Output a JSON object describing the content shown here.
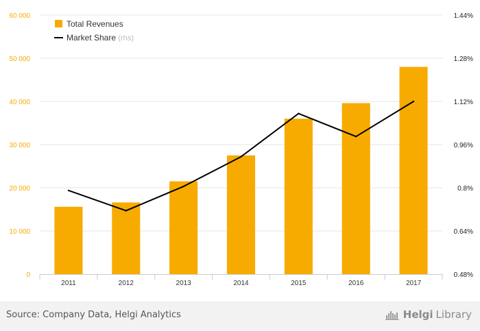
{
  "chart_data": {
    "type": "bar+line",
    "categories": [
      "2011",
      "2012",
      "2013",
      "2014",
      "2015",
      "2016",
      "2017"
    ],
    "series": [
      {
        "name": "Total Revenues",
        "type": "bar",
        "axis": "left",
        "color": "#f7ab00",
        "values": [
          15600,
          16600,
          21500,
          27500,
          36000,
          39600,
          48000
        ]
      },
      {
        "name": "Market Share",
        "type": "line",
        "axis": "right",
        "color": "#000000",
        "values": [
          0.79,
          0.715,
          0.805,
          0.915,
          1.075,
          0.99,
          1.12
        ]
      }
    ],
    "legend": {
      "items": [
        "Total Revenues",
        "Market Share"
      ],
      "suffix": "(rhs)",
      "placement": "top-left"
    },
    "left_axis": {
      "ylim": [
        0,
        60000
      ],
      "ticks": [
        "0",
        "10 000",
        "20 000",
        "30 000",
        "40 000",
        "50 000",
        "60 000"
      ],
      "color": "#f7ab00"
    },
    "right_axis": {
      "ylim": [
        0.48,
        1.44
      ],
      "ticks": [
        "0.48%",
        "0.64%",
        "0.8%",
        "0.96%",
        "1.12%",
        "1.28%",
        "1.44%"
      ]
    },
    "grid": true
  },
  "footer": {
    "source": "Source: Company Data, Helgi Analytics",
    "brand_part1": "Helgi",
    "brand_part2": "Library"
  }
}
